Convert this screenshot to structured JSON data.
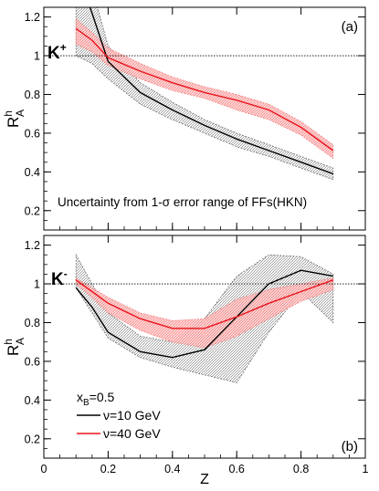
{
  "chart_data": [
    {
      "type": "line",
      "panel_tag": "(a)",
      "particle_label": "K",
      "particle_charge": "+",
      "annotation": "Uncertainty from 1-σ error range of FFs(HKN)",
      "ylabel": {
        "main": "R",
        "sup": "h",
        "sub": "A"
      },
      "ylim": [
        0.1,
        1.25
      ],
      "yticks": [
        0.2,
        0.4,
        0.6,
        0.8,
        1,
        1.2
      ],
      "ytick_labels": [
        "0.2",
        "0.4",
        "0.6",
        "0.8",
        "1",
        "1.2"
      ],
      "reference_line": 1,
      "series": [
        {
          "name": "ν=10 GeV",
          "color": "#000000",
          "x": [
            0.1,
            0.15,
            0.2,
            0.3,
            0.4,
            0.5,
            0.6,
            0.7,
            0.8,
            0.9
          ],
          "y": [
            1.45,
            1.22,
            0.97,
            0.81,
            0.72,
            0.64,
            0.57,
            0.51,
            0.45,
            0.39
          ],
          "band_upper": [
            1.6,
            1.35,
            1.05,
            0.86,
            0.76,
            0.67,
            0.6,
            0.54,
            0.48,
            0.42
          ],
          "band_lower": [
            1.0,
            0.96,
            0.88,
            0.75,
            0.67,
            0.6,
            0.53,
            0.48,
            0.42,
            0.36
          ]
        },
        {
          "name": "ν=40 GeV",
          "color": "#e8141c",
          "x": [
            0.1,
            0.15,
            0.2,
            0.3,
            0.4,
            0.5,
            0.6,
            0.7,
            0.8,
            0.9
          ],
          "y": [
            1.14,
            1.08,
            0.99,
            0.92,
            0.86,
            0.81,
            0.77,
            0.72,
            0.63,
            0.51
          ],
          "band_upper": [
            1.19,
            1.12,
            1.04,
            0.96,
            0.89,
            0.84,
            0.8,
            0.75,
            0.66,
            0.54
          ],
          "band_lower": [
            1.06,
            1.02,
            0.95,
            0.88,
            0.82,
            0.78,
            0.72,
            0.67,
            0.59,
            0.47
          ]
        }
      ]
    },
    {
      "type": "line",
      "panel_tag": "(b)",
      "particle_label": "K",
      "particle_charge": "-",
      "ylabel": {
        "main": "R",
        "sup": "h",
        "sub": "A"
      },
      "xlabel": "Z",
      "xlim": [
        0,
        1
      ],
      "xticks": [
        0,
        0.2,
        0.4,
        0.6,
        0.8,
        1
      ],
      "xtick_labels": [
        "0",
        "0.2",
        "0.4",
        "0.6",
        "0.8",
        "1"
      ],
      "ylim": [
        0.1,
        1.25
      ],
      "yticks": [
        0.2,
        0.4,
        0.6,
        0.8,
        1,
        1.2
      ],
      "ytick_labels": [
        "0.2",
        "0.4",
        "0.6",
        "0.8",
        "1",
        "1.2"
      ],
      "reference_line": 1,
      "legend": {
        "header": "x",
        "header_sub": "B",
        "header_value": "=0.5",
        "placement": "bottom-left",
        "entries": [
          "ν=10 GeV",
          "ν=40 GeV"
        ]
      },
      "series": [
        {
          "name": "ν=10 GeV",
          "color": "#000000",
          "x": [
            0.1,
            0.15,
            0.2,
            0.3,
            0.4,
            0.5,
            0.6,
            0.7,
            0.8,
            0.9
          ],
          "y": [
            0.98,
            0.88,
            0.75,
            0.65,
            0.62,
            0.66,
            0.83,
            1.0,
            1.07,
            1.04
          ],
          "band_upper": [
            1.15,
            1.0,
            0.85,
            0.73,
            0.7,
            0.82,
            1.04,
            1.15,
            1.14,
            1.05
          ],
          "band_lower": [
            0.98,
            0.85,
            0.72,
            0.62,
            0.57,
            0.53,
            0.49,
            0.75,
            0.96,
            0.8
          ]
        },
        {
          "name": "ν=40 GeV",
          "color": "#e8141c",
          "x": [
            0.1,
            0.15,
            0.2,
            0.3,
            0.4,
            0.5,
            0.6,
            0.7,
            0.8,
            0.9
          ],
          "y": [
            1.02,
            0.96,
            0.9,
            0.82,
            0.77,
            0.77,
            0.83,
            0.9,
            0.96,
            1.02
          ],
          "band_upper": [
            1.03,
            0.98,
            0.93,
            0.85,
            0.81,
            0.82,
            0.92,
            0.97,
            1.0,
            1.03
          ],
          "band_lower": [
            1.0,
            0.93,
            0.85,
            0.76,
            0.7,
            0.67,
            0.73,
            0.82,
            0.91,
            0.97
          ]
        }
      ]
    }
  ]
}
